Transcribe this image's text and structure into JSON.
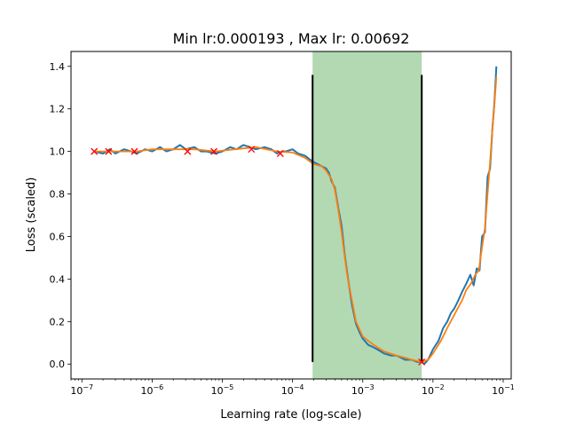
{
  "chart_data": {
    "type": "line",
    "title": "Min lr:0.000193 , Max lr: 0.00692",
    "xlabel": "Learning rate (log-scale)",
    "ylabel": "Loss (scaled)",
    "xscale": "log",
    "xlim": [
      7e-08,
      0.13
    ],
    "ylim": [
      -0.07,
      1.47
    ],
    "grid": false,
    "xtick_exponents": [
      -7,
      -6,
      -5,
      -4,
      -3,
      -2,
      -1
    ],
    "xtick_base": "10",
    "yticks": [
      "0.0",
      "0.2",
      "0.4",
      "0.6",
      "0.8",
      "1.0",
      "1.2",
      "1.4"
    ],
    "ytick_values": [
      0.0,
      0.2,
      0.4,
      0.6,
      0.8,
      1.0,
      1.2,
      1.4
    ],
    "highlight_region": {
      "x": [
        0.000193,
        0.00692
      ],
      "color": "#b2d9b2"
    },
    "vlines": [
      {
        "x": 0.000193,
        "y": [
          0.01,
          1.36
        ],
        "color": "#000000"
      },
      {
        "x": 0.00692,
        "y": [
          0.01,
          1.36
        ],
        "color": "#000000"
      }
    ],
    "series": [
      {
        "style": "raw",
        "color": "#1f77b4",
        "x": [
          1.5e-07,
          2e-07,
          2.5e-07,
          3e-07,
          4e-07,
          5e-07,
          6e-07,
          8e-07,
          1e-06,
          1.3e-06,
          1.6e-06,
          2e-06,
          2.5e-06,
          3e-06,
          4e-06,
          5e-06,
          6e-06,
          8e-06,
          1e-05,
          1.3e-05,
          1.6e-05,
          2e-05,
          2.5e-05,
          3e-05,
          4e-05,
          5e-05,
          6e-05,
          7e-05,
          8e-05,
          0.0001,
          0.00012,
          0.00015,
          0.00018,
          0.0002,
          0.00023,
          0.00026,
          0.0003,
          0.00033,
          0.00036,
          0.0004,
          0.00045,
          0.0005,
          0.00055,
          0.0006,
          0.0007,
          0.0008,
          0.0009,
          0.001,
          0.0012,
          0.0014,
          0.0016,
          0.0018,
          0.002,
          0.0025,
          0.003,
          0.0035,
          0.004,
          0.005,
          0.006,
          0.0069,
          0.0075,
          0.0085,
          0.01,
          0.012,
          0.014,
          0.016,
          0.018,
          0.02,
          0.023,
          0.026,
          0.03,
          0.034,
          0.038,
          0.042,
          0.046,
          0.05,
          0.055,
          0.06,
          0.065,
          0.07,
          0.075,
          0.08
        ],
        "y": [
          1.0,
          0.99,
          1.01,
          0.99,
          1.01,
          1.0,
          0.99,
          1.01,
          1.0,
          1.02,
          1.0,
          1.01,
          1.03,
          1.01,
          1.02,
          1.0,
          1.0,
          0.99,
          1.0,
          1.02,
          1.01,
          1.03,
          1.02,
          1.01,
          1.02,
          1.01,
          0.99,
          1.0,
          1.0,
          1.01,
          0.99,
          0.98,
          0.96,
          0.95,
          0.94,
          0.93,
          0.92,
          0.9,
          0.86,
          0.83,
          0.73,
          0.65,
          0.52,
          0.43,
          0.28,
          0.19,
          0.15,
          0.12,
          0.09,
          0.08,
          0.07,
          0.06,
          0.05,
          0.04,
          0.04,
          0.03,
          0.02,
          0.02,
          0.01,
          0.01,
          0.0,
          0.02,
          0.07,
          0.11,
          0.17,
          0.2,
          0.24,
          0.26,
          0.3,
          0.34,
          0.38,
          0.42,
          0.37,
          0.45,
          0.44,
          0.6,
          0.62,
          0.88,
          0.92,
          1.1,
          1.23,
          1.4
        ]
      },
      {
        "style": "smoothed",
        "color": "#ff7f0e",
        "x": [
          1.5e-07,
          3e-07,
          6e-07,
          1e-06,
          2e-06,
          4e-06,
          8e-06,
          1.5e-05,
          3e-05,
          6e-05,
          0.0001,
          0.00015,
          0.0002,
          0.00026,
          0.0003,
          0.00036,
          0.0004,
          0.00045,
          0.0005,
          0.00055,
          0.0006,
          0.0007,
          0.0008,
          0.001,
          0.0013,
          0.0016,
          0.002,
          0.003,
          0.004,
          0.005,
          0.0069,
          0.0085,
          0.01,
          0.013,
          0.016,
          0.02,
          0.026,
          0.03,
          0.035,
          0.04,
          0.045,
          0.05,
          0.055,
          0.06,
          0.065,
          0.07,
          0.075,
          0.08
        ],
        "y": [
          1.0,
          1.0,
          1.0,
          1.01,
          1.01,
          1.01,
          1.0,
          1.01,
          1.02,
          1.0,
          0.995,
          0.97,
          0.94,
          0.93,
          0.91,
          0.87,
          0.82,
          0.72,
          0.62,
          0.51,
          0.42,
          0.3,
          0.2,
          0.13,
          0.1,
          0.08,
          0.06,
          0.04,
          0.03,
          0.02,
          0.01,
          0.02,
          0.05,
          0.11,
          0.17,
          0.23,
          0.3,
          0.35,
          0.38,
          0.42,
          0.44,
          0.55,
          0.64,
          0.8,
          0.95,
          1.1,
          1.22,
          1.35
        ]
      },
      {
        "style": "markers",
        "color": "#ff0000",
        "x": [
          1.5e-07,
          2.4e-07,
          5.6e-07,
          3.2e-06,
          7.6e-06,
          2.6e-05,
          6.7e-05,
          0.0069
        ],
        "y": [
          1.0,
          1.0,
          1.0,
          1.0,
          1.0,
          1.01,
          0.99,
          0.01
        ]
      }
    ]
  }
}
